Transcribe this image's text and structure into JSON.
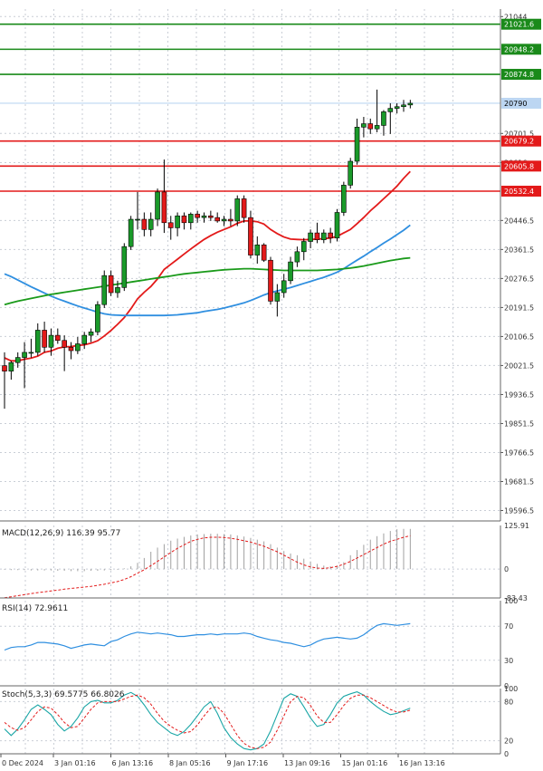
{
  "colors": {
    "bull": "#1a9a2a",
    "bear": "#e31a1a",
    "ma_fast": "#e31a1a",
    "ma_mid": "#2f8fe0",
    "ma_slow": "#1a9a1a",
    "resistance": "#1a8a1a",
    "support": "#e31a1a",
    "current": "#bcd6f2",
    "grid": "#c9ced6",
    "axis_text": "#333333"
  },
  "chart_data": [
    {
      "type": "candlestick",
      "title": "",
      "ylim": [
        19566,
        21066
      ],
      "y_ticks": [
        21044.0,
        20701.5,
        20616.0,
        20446.5,
        20361.5,
        20276.5,
        20191.5,
        20106.5,
        20021.5,
        19936.5,
        19851.5,
        19766.5,
        19681.5,
        19596.5
      ],
      "price_labels": {
        "resistance": [
          21021.6,
          20948.2,
          20874.8
        ],
        "current": 20790.0,
        "support": [
          20679.2,
          20605.8,
          20532.4
        ]
      },
      "x_labels": [
        "0 Dec 2024",
        "3 Jan 01:16",
        "6 Jan 13:16",
        "8 Jan 05:16",
        "9 Jan 17:16",
        "13 Jan 09:16",
        "15 Jan 01:16",
        "16 Jan 13:16"
      ],
      "candles": [
        {
          "o": 20021,
          "h": 20060,
          "l": 19895,
          "c": 20005
        },
        {
          "o": 20005,
          "h": 20035,
          "l": 19980,
          "c": 20030
        },
        {
          "o": 20030,
          "h": 20060,
          "l": 20015,
          "c": 20045
        },
        {
          "o": 20045,
          "h": 20090,
          "l": 19955,
          "c": 20060
        },
        {
          "o": 20060,
          "h": 20100,
          "l": 20045,
          "c": 20060
        },
        {
          "o": 20060,
          "h": 20145,
          "l": 20050,
          "c": 20125
        },
        {
          "o": 20125,
          "h": 20150,
          "l": 20060,
          "c": 20075
        },
        {
          "o": 20075,
          "h": 20130,
          "l": 20050,
          "c": 20110
        },
        {
          "o": 20110,
          "h": 20130,
          "l": 20085,
          "c": 20095
        },
        {
          "o": 20095,
          "h": 20110,
          "l": 20005,
          "c": 20075
        },
        {
          "o": 20075,
          "h": 20090,
          "l": 20040,
          "c": 20065
        },
        {
          "o": 20065,
          "h": 20105,
          "l": 20055,
          "c": 20085
        },
        {
          "o": 20085,
          "h": 20120,
          "l": 20070,
          "c": 20110
        },
        {
          "o": 20110,
          "h": 20130,
          "l": 20090,
          "c": 20120
        },
        {
          "o": 20120,
          "h": 20210,
          "l": 20110,
          "c": 20200
        },
        {
          "o": 20200,
          "h": 20300,
          "l": 20190,
          "c": 20285
        },
        {
          "o": 20285,
          "h": 20300,
          "l": 20225,
          "c": 20235
        },
        {
          "o": 20235,
          "h": 20270,
          "l": 20220,
          "c": 20250
        },
        {
          "o": 20250,
          "h": 20380,
          "l": 20240,
          "c": 20370
        },
        {
          "o": 20370,
          "h": 20460,
          "l": 20360,
          "c": 20450
        },
        {
          "o": 20450,
          "h": 20530,
          "l": 20420,
          "c": 20450
        },
        {
          "o": 20450,
          "h": 20470,
          "l": 20400,
          "c": 20420
        },
        {
          "o": 20420,
          "h": 20470,
          "l": 20400,
          "c": 20450
        },
        {
          "o": 20450,
          "h": 20540,
          "l": 20430,
          "c": 20530
        },
        {
          "o": 20530,
          "h": 20625,
          "l": 20410,
          "c": 20440
        },
        {
          "o": 20440,
          "h": 20460,
          "l": 20390,
          "c": 20425
        },
        {
          "o": 20425,
          "h": 20470,
          "l": 20400,
          "c": 20460
        },
        {
          "o": 20460,
          "h": 20470,
          "l": 20420,
          "c": 20440
        },
        {
          "o": 20440,
          "h": 20470,
          "l": 20420,
          "c": 20465
        },
        {
          "o": 20465,
          "h": 20475,
          "l": 20440,
          "c": 20455
        },
        {
          "o": 20455,
          "h": 20470,
          "l": 20440,
          "c": 20460
        },
        {
          "o": 20460,
          "h": 20475,
          "l": 20445,
          "c": 20455
        },
        {
          "o": 20455,
          "h": 20470,
          "l": 20440,
          "c": 20445
        },
        {
          "o": 20445,
          "h": 20460,
          "l": 20430,
          "c": 20450
        },
        {
          "o": 20450,
          "h": 20480,
          "l": 20430,
          "c": 20445
        },
        {
          "o": 20445,
          "h": 20520,
          "l": 20430,
          "c": 20510
        },
        {
          "o": 20510,
          "h": 20520,
          "l": 20440,
          "c": 20455
        },
        {
          "o": 20455,
          "h": 20475,
          "l": 20335,
          "c": 20345
        },
        {
          "o": 20345,
          "h": 20400,
          "l": 20320,
          "c": 20375
        },
        {
          "o": 20375,
          "h": 20380,
          "l": 20325,
          "c": 20330
        },
        {
          "o": 20330,
          "h": 20340,
          "l": 20200,
          "c": 20210
        },
        {
          "o": 20210,
          "h": 20260,
          "l": 20165,
          "c": 20235
        },
        {
          "o": 20235,
          "h": 20290,
          "l": 20220,
          "c": 20270
        },
        {
          "o": 20270,
          "h": 20340,
          "l": 20260,
          "c": 20325
        },
        {
          "o": 20325,
          "h": 20370,
          "l": 20310,
          "c": 20355
        },
        {
          "o": 20355,
          "h": 20395,
          "l": 20330,
          "c": 20385
        },
        {
          "o": 20385,
          "h": 20420,
          "l": 20365,
          "c": 20410
        },
        {
          "o": 20410,
          "h": 20440,
          "l": 20380,
          "c": 20390
        },
        {
          "o": 20390,
          "h": 20420,
          "l": 20380,
          "c": 20410
        },
        {
          "o": 20410,
          "h": 20425,
          "l": 20380,
          "c": 20395
        },
        {
          "o": 20395,
          "h": 20480,
          "l": 20385,
          "c": 20470
        },
        {
          "o": 20470,
          "h": 20560,
          "l": 20460,
          "c": 20550
        },
        {
          "o": 20550,
          "h": 20630,
          "l": 20540,
          "c": 20620
        },
        {
          "o": 20620,
          "h": 20745,
          "l": 20610,
          "c": 20720
        },
        {
          "o": 20720,
          "h": 20750,
          "l": 20690,
          "c": 20730
        },
        {
          "o": 20730,
          "h": 20745,
          "l": 20700,
          "c": 20715
        },
        {
          "o": 20715,
          "h": 20830,
          "l": 20705,
          "c": 20725
        },
        {
          "o": 20725,
          "h": 20770,
          "l": 20695,
          "c": 20765
        },
        {
          "o": 20765,
          "h": 20790,
          "l": 20700,
          "c": 20775
        },
        {
          "o": 20775,
          "h": 20790,
          "l": 20760,
          "c": 20780
        },
        {
          "o": 20780,
          "h": 20800,
          "l": 20765,
          "c": 20785
        },
        {
          "o": 20785,
          "h": 20800,
          "l": 20775,
          "c": 20790
        }
      ],
      "moving_averages": [
        {
          "role": "fast",
          "values": [
            20044,
            20035,
            20035,
            20040,
            20043,
            20049,
            20060,
            20064,
            20072,
            20076,
            20077,
            20080,
            20082,
            20087,
            20094,
            20108,
            20124,
            20142,
            20162,
            20188,
            20217,
            20236,
            20253,
            20275,
            20303,
            20318,
            20333,
            20348,
            20363,
            20377,
            20391,
            20402,
            20412,
            20420,
            20428,
            20438,
            20445,
            20445,
            20443,
            20436,
            20420,
            20408,
            20398,
            20392,
            20391,
            20390,
            20391,
            20392,
            20393,
            20395,
            20400,
            20410,
            20420,
            20437,
            20455,
            20475,
            20492,
            20510,
            20528,
            20547,
            20570,
            20590
          ]
        },
        {
          "role": "mid",
          "values": [
            20290,
            20282,
            20272,
            20262,
            20252,
            20243,
            20234,
            20225,
            20217,
            20210,
            20203,
            20196,
            20190,
            20184,
            20178,
            20173,
            20170,
            20169,
            20168,
            20168,
            20168,
            20168,
            20168,
            20168,
            20168,
            20169,
            20170,
            20172,
            20174,
            20176,
            20180,
            20183,
            20186,
            20190,
            20195,
            20200,
            20205,
            20212,
            20220,
            20228,
            20235,
            20240,
            20245,
            20250,
            20256,
            20262,
            20268,
            20274,
            20280,
            20287,
            20295,
            20305,
            20318,
            20330,
            20342,
            20355,
            20367,
            20380,
            20392,
            20405,
            20418,
            20433
          ]
        },
        {
          "role": "slow",
          "values": [
            20200,
            20205,
            20210,
            20214,
            20218,
            20222,
            20226,
            20230,
            20233,
            20236,
            20239,
            20242,
            20245,
            20248,
            20251,
            20254,
            20257,
            20260,
            20263,
            20266,
            20269,
            20272,
            20275,
            20278,
            20281,
            20284,
            20287,
            20290,
            20292,
            20294,
            20296,
            20298,
            20300,
            20302,
            20303,
            20304,
            20305,
            20305,
            20304,
            20303,
            20302,
            20301,
            20300,
            20300,
            20300,
            20300,
            20300,
            20300,
            20301,
            20302,
            20303,
            20305,
            20307,
            20310,
            20313,
            20317,
            20321,
            20325,
            20329,
            20332,
            20335,
            20337
          ]
        }
      ]
    },
    {
      "type": "bar",
      "title": "MACD(12,26,9) 116.39 95.77",
      "ylim": [
        -83.43,
        125.91
      ],
      "y_ticks": [
        125.91,
        0.0,
        -83.43
      ],
      "histogram": [
        -2,
        -3,
        -3,
        -3,
        -4,
        -4,
        -4,
        -4,
        -5,
        -5,
        -6,
        -6,
        -6,
        -5,
        -5,
        -4,
        -3,
        -2,
        2,
        8,
        18,
        32,
        50,
        62,
        72,
        82,
        88,
        93,
        97,
        100,
        101,
        102,
        102,
        101,
        100,
        97,
        94,
        90,
        85,
        80,
        72,
        62,
        52,
        45,
        40,
        30,
        22,
        15,
        10,
        8,
        10,
        20,
        40,
        55,
        70,
        85,
        95,
        103,
        110,
        115,
        116,
        116
      ],
      "signal": [
        -83,
        -80,
        -77,
        -74,
        -71,
        -68,
        -66,
        -63,
        -61,
        -58,
        -56,
        -54,
        -52,
        -50,
        -47,
        -44,
        -40,
        -36,
        -30,
        -22,
        -12,
        -2,
        10,
        22,
        35,
        48,
        60,
        70,
        80,
        86,
        90,
        92,
        92,
        91,
        89,
        86,
        82,
        78,
        72,
        66,
        58,
        50,
        40,
        30,
        20,
        12,
        6,
        3,
        2,
        4,
        8,
        14,
        22,
        32,
        42,
        52,
        62,
        72,
        80,
        86,
        92,
        96
      ]
    },
    {
      "type": "line",
      "title": "RSI(14) 72.9611",
      "ylim": [
        0,
        100
      ],
      "y_ticks": [
        100,
        70,
        30,
        0
      ],
      "values": [
        42,
        45,
        46,
        46,
        48,
        51,
        51,
        50,
        49,
        47,
        44,
        46,
        48,
        49,
        48,
        47,
        52,
        54,
        58,
        61,
        63,
        62,
        61,
        62,
        61,
        60,
        58,
        58,
        59,
        60,
        60,
        61,
        60,
        61,
        61,
        61,
        62,
        61,
        58,
        56,
        54,
        53,
        51,
        50,
        48,
        46,
        48,
        52,
        55,
        56,
        57,
        56,
        55,
        56,
        60,
        66,
        71,
        73,
        72,
        71,
        72,
        73
      ]
    },
    {
      "type": "line",
      "title": "Stoch(5,3,3) 69.5775 66.8026",
      "ylim": [
        0,
        100
      ],
      "y_ticks": [
        100,
        80,
        20,
        0
      ],
      "series": [
        {
          "role": "main",
          "values": [
            38,
            28,
            38,
            52,
            68,
            75,
            68,
            60,
            45,
            35,
            42,
            55,
            72,
            80,
            82,
            78,
            78,
            82,
            90,
            94,
            88,
            75,
            60,
            48,
            40,
            32,
            28,
            34,
            45,
            58,
            72,
            80,
            62,
            40,
            25,
            15,
            8,
            6,
            8,
            15,
            35,
            60,
            85,
            92,
            88,
            72,
            55,
            42,
            45,
            60,
            78,
            88,
            92,
            95,
            90,
            80,
            72,
            65,
            60,
            62,
            66,
            70
          ]
        },
        {
          "role": "signal",
          "values": [
            48,
            40,
            36,
            40,
            52,
            65,
            72,
            70,
            60,
            48,
            40,
            42,
            55,
            68,
            78,
            80,
            80,
            80,
            84,
            88,
            90,
            86,
            76,
            62,
            50,
            42,
            36,
            32,
            34,
            44,
            58,
            70,
            72,
            62,
            45,
            28,
            16,
            10,
            8,
            10,
            18,
            36,
            58,
            80,
            88,
            86,
            74,
            58,
            48,
            48,
            60,
            74,
            85,
            90,
            90,
            86,
            80,
            74,
            68,
            64,
            64,
            67
          ]
        }
      ]
    }
  ]
}
